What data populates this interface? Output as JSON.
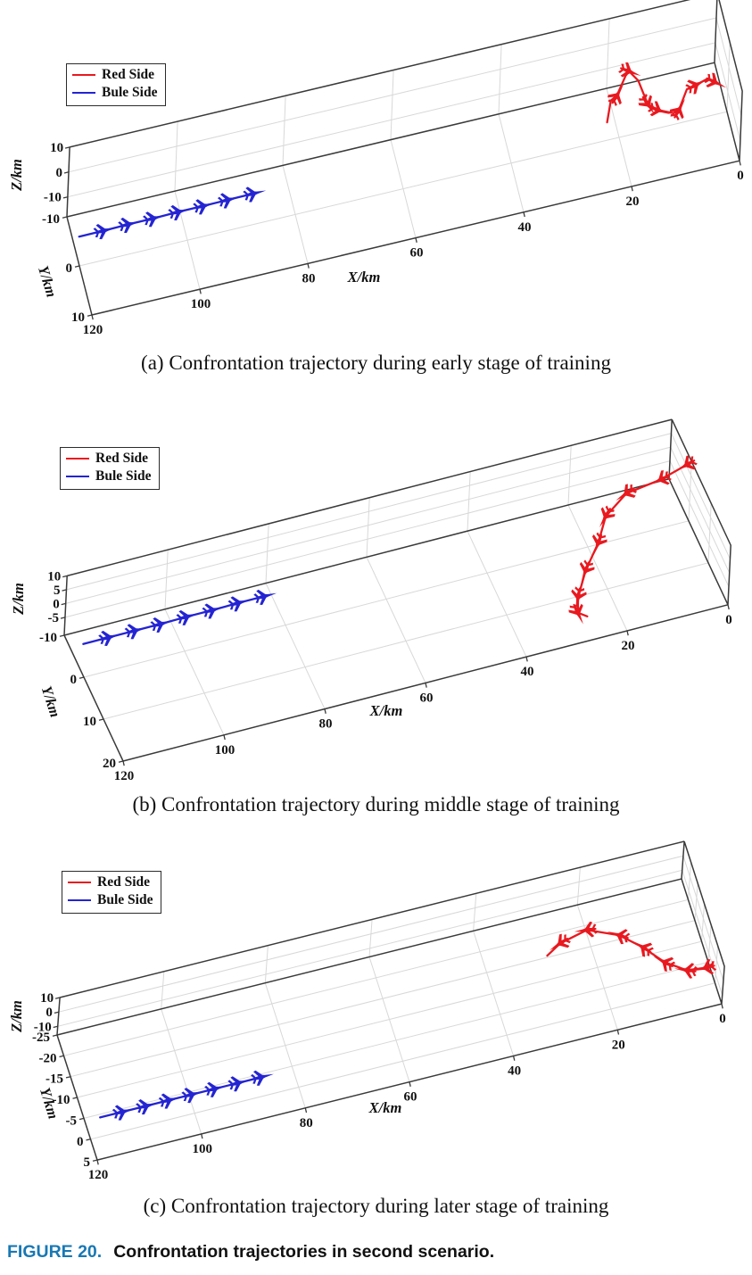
{
  "figure_caption": {
    "label": "FIGURE 20.",
    "label_color": "#1878b4",
    "text": "Confrontation trajectories in second scenario."
  },
  "legend": {
    "position": "upper left",
    "items": [
      {
        "label": "Red Side",
        "color": "#e8191f"
      },
      {
        "label": "Bule Side",
        "color": "#2424d2"
      }
    ]
  },
  "chart_data": [
    {
      "id": "a",
      "type": "line",
      "projection": "3d",
      "title": "(a) Confrontation trajectory during early stage of training",
      "xlabel": "X/km",
      "ylabel": "Y/km",
      "zlabel": "Z/km",
      "xlim": [
        0,
        120
      ],
      "ylim": [
        -10,
        10
      ],
      "zlim": [
        -18,
        10
      ],
      "xticks": [
        0,
        20,
        40,
        60,
        80,
        100,
        120
      ],
      "yticks": [
        -10,
        0,
        10
      ],
      "zticks": [
        -10,
        0,
        10
      ],
      "grid": true,
      "legend_position": "upper left",
      "series": [
        {
          "name": "Red Side",
          "color": "#e8191f",
          "marker": "jet",
          "marker_indices": [
            2,
            4,
            6,
            7,
            9,
            11,
            13
          ],
          "points": [
            [
              24.1,
              6.5,
              3
            ],
            [
              22.5,
              2.5,
              3
            ],
            [
              21.2,
              1.8,
              3
            ],
            [
              18.8,
              -1.6,
              3
            ],
            [
              18,
              -2.3,
              3
            ],
            [
              16.8,
              -0.1,
              3
            ],
            [
              16.2,
              4.9,
              3
            ],
            [
              14.6,
              6.5,
              3
            ],
            [
              12.1,
              7.8,
              3
            ],
            [
              11,
              7.4,
              3
            ],
            [
              8.7,
              3.8,
              3
            ],
            [
              6.9,
              3.4,
              3
            ],
            [
              4.6,
              2.7,
              3
            ],
            [
              3.5,
              3.7,
              3
            ]
          ]
        },
        {
          "name": "Bule Side",
          "color": "#2424d2",
          "marker": "jet",
          "marker_indices": [
            1,
            2,
            3,
            4,
            5,
            6,
            7
          ],
          "points": [
            [
              120,
              -1,
              -8.2
            ],
            [
              115.4,
              -1,
              -8.2
            ],
            [
              110.8,
              -1.1,
              -8.2
            ],
            [
              106.2,
              -1.1,
              -8.2
            ],
            [
              101.5,
              -1.2,
              -8.2
            ],
            [
              96.9,
              -1.2,
              -8.2
            ],
            [
              92.3,
              -1.25,
              -8.2
            ],
            [
              87.6,
              -1.3,
              -8.2
            ]
          ]
        }
      ]
    },
    {
      "id": "b",
      "type": "line",
      "projection": "3d",
      "title": "(b) Confrontation trajectory during middle stage of training",
      "xlabel": "X/km",
      "ylabel": "Y/km",
      "zlabel": "Z/km",
      "xlim": [
        0,
        120
      ],
      "ylim": [
        -10,
        20
      ],
      "zlim": [
        -11.5,
        10
      ],
      "xticks": [
        0,
        20,
        40,
        60,
        80,
        100,
        120
      ],
      "yticks": [
        -10,
        0,
        10,
        20
      ],
      "zticks": [
        -5,
        0,
        5,
        10
      ],
      "grid": true,
      "legend_position": "upper left",
      "series": [
        {
          "name": "Red Side",
          "color": "#e8191f",
          "marker": "jet",
          "marker_indices": [
            0,
            1,
            2,
            3,
            4,
            5,
            6,
            7
          ],
          "points": [
            [
              0.5,
              -1,
              7.5
            ],
            [
              6,
              0,
              6.3
            ],
            [
              13,
              0.5,
              5.3
            ],
            [
              18,
              3,
              3.2
            ],
            [
              21,
              7,
              1
            ],
            [
              25,
              11,
              -1
            ],
            [
              28,
              15,
              -3.1
            ],
            [
              29,
              17.5,
              -4.5
            ],
            [
              27.5,
              18.5,
              -5
            ]
          ]
        },
        {
          "name": "Bule Side",
          "color": "#2424d2",
          "marker": "jet",
          "marker_indices": [
            1,
            2,
            3,
            4,
            5,
            6,
            7
          ],
          "points": [
            [
              120,
              -1,
              -1
            ],
            [
              114.9,
              -1,
              -1
            ],
            [
              109.7,
              -1,
              -1
            ],
            [
              104.6,
              -1,
              -1
            ],
            [
              99.4,
              -1.1,
              -1
            ],
            [
              94.3,
              -1.1,
              -1
            ],
            [
              89.1,
              -1.2,
              -1
            ],
            [
              84,
              -1.2,
              -1
            ]
          ]
        }
      ]
    },
    {
      "id": "c",
      "type": "line",
      "projection": "3d",
      "title": "(c) Confrontation trajectory during later stage of training",
      "xlabel": "X/km",
      "ylabel": "Y/km",
      "zlabel": "Z/km",
      "xlim": [
        0,
        120
      ],
      "ylim": [
        -25,
        5
      ],
      "zlim": [
        -16,
        10
      ],
      "xticks": [
        0,
        20,
        40,
        60,
        80,
        100,
        120
      ],
      "yticks": [
        -25,
        -20,
        -15,
        -10,
        -5,
        0,
        5
      ],
      "zticks": [
        -10,
        0,
        10
      ],
      "grid": true,
      "legend_position": "upper left",
      "series": [
        {
          "name": "Red Side",
          "color": "#e8191f",
          "marker": "jet",
          "marker_indices": [
            1,
            2,
            3,
            4,
            5,
            6,
            7
          ],
          "points": [
            [
              1,
              1,
              1.2
            ],
            [
              2.5,
              1.5,
              1.2
            ],
            [
              6,
              1,
              1.2
            ],
            [
              9.5,
              -2,
              1.2
            ],
            [
              12.5,
              -6.5,
              1.2
            ],
            [
              16,
              -10.5,
              1.2
            ],
            [
              21.5,
              -13.5,
              1.2
            ],
            [
              27,
              -12,
              1.2
            ],
            [
              30,
              -10,
              1.2
            ]
          ]
        },
        {
          "name": "Bule Side",
          "color": "#2424d2",
          "marker": "jet",
          "marker_indices": [
            1,
            2,
            3,
            4,
            5,
            6,
            7
          ],
          "points": [
            [
              118,
              -1.4,
              -6.8
            ],
            [
              113.6,
              -1.4,
              -6.8
            ],
            [
              109.1,
              -1.4,
              -6.8
            ],
            [
              104.7,
              -1.4,
              -6.8
            ],
            [
              100.3,
              -1.4,
              -6.8
            ],
            [
              95.9,
              -1.4,
              -6.8
            ],
            [
              91.4,
              -1.4,
              -6.8
            ],
            [
              87,
              -1.4,
              -6.8
            ]
          ]
        }
      ]
    }
  ]
}
